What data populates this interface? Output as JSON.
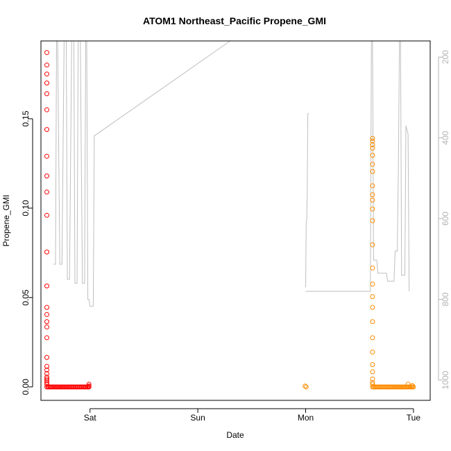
{
  "chart_data": {
    "type": "scatter",
    "title": "ATOM1 Northeast_Pacific Propene_GMI",
    "xlabel": "Date",
    "ylabel": "Propene_GMI",
    "x_axis_unit": "days",
    "xlim": [
      -0.455,
      3.155
    ],
    "ylim": [
      -0.0075,
      0.1935
    ],
    "x_ticks": [
      {
        "label": "Sat",
        "value": 0
      },
      {
        "label": "Sun",
        "value": 1
      },
      {
        "label": "Mon",
        "value": 2
      },
      {
        "label": "Tue",
        "value": 3
      }
    ],
    "y_ticks": [
      {
        "label": "0.00",
        "value": 0.0
      },
      {
        "label": "0.05",
        "value": 0.05
      },
      {
        "label": "0.10",
        "value": 0.1
      },
      {
        "label": "0.15",
        "value": 0.15
      }
    ],
    "right_axis": {
      "ylim_top_to_bottom": [
        160,
        1050
      ],
      "inverted": true,
      "color": "#b3b3b3",
      "ticks": [
        {
          "label": "200",
          "value": 200
        },
        {
          "label": "400",
          "value": 400
        },
        {
          "label": "600",
          "value": 600
        },
        {
          "label": "800",
          "value": 800
        },
        {
          "label": "1000",
          "value": 1000
        }
      ]
    },
    "series": [
      {
        "color": "#ff0000",
        "x_start": -0.4,
        "x_end": -0.01,
        "cluster_x": -0.4,
        "cluster_y": [
          0.187,
          0.18,
          0.175,
          0.17,
          0.164,
          0.155,
          0.144,
          0.129,
          0.118,
          0.109,
          0.096,
          0.0755,
          0.0565,
          0.0445,
          0.0405,
          0.0365,
          0.0335,
          0.0275,
          0.0165,
          0.0115,
          0.0095,
          0.0075,
          0.0055,
          0.0045,
          0.0035,
          0.0025,
          0.0015
        ],
        "baseline_y": 0.0,
        "end_markers": [
          {
            "x": -0.01,
            "y": 0.0015
          },
          {
            "x": -0.01,
            "y": 0.0005
          }
        ]
      },
      {
        "color": "#ff8c00",
        "x_start": 1.995,
        "x_end": 3.0,
        "early_points": [
          {
            "x": 1.995,
            "y": 0.0005
          },
          {
            "x": 2.005,
            "y": 0.0
          }
        ],
        "cluster_x": 2.62,
        "cluster_y": [
          0.139,
          0.1375,
          0.1355,
          0.1335,
          0.1295,
          0.1245,
          0.1205,
          0.1125,
          0.1075,
          0.1045,
          0.0995,
          0.093,
          0.0795,
          0.0665,
          0.0575,
          0.0505,
          0.0445,
          0.0365,
          0.0275,
          0.0195,
          0.0125,
          0.0085,
          0.0045,
          0.0025,
          0.0015
        ],
        "baseline_y": 0.0,
        "baseline_x_start": 2.62,
        "baseline_x_end": 3.0,
        "end_markers": [
          {
            "x": 2.95,
            "y": 0.0015
          },
          {
            "x": 2.99,
            "y": 0.0008
          }
        ]
      }
    ],
    "pressure_line": {
      "color": "#bebebe",
      "segments": [
        [
          [
            -0.34,
            713
          ],
          [
            -0.32,
            713
          ],
          [
            -0.31,
            160
          ],
          [
            -0.3,
            160
          ],
          [
            -0.28,
            713
          ],
          [
            -0.26,
            713
          ],
          [
            -0.24,
            160
          ],
          [
            -0.22,
            160
          ],
          [
            -0.21,
            750
          ],
          [
            -0.19,
            750
          ],
          [
            -0.17,
            160
          ],
          [
            -0.15,
            160
          ],
          [
            -0.14,
            760
          ],
          [
            -0.12,
            760
          ],
          [
            -0.11,
            160
          ],
          [
            -0.09,
            160
          ],
          [
            -0.07,
            760
          ],
          [
            -0.05,
            760
          ],
          [
            -0.04,
            160
          ],
          [
            -0.03,
            160
          ],
          [
            -0.02,
            800
          ],
          [
            -0.01,
            800
          ],
          [
            0.0,
            817
          ],
          [
            0.03,
            817
          ],
          [
            0.04,
            395
          ],
          [
            1.3,
            160
          ]
        ],
        [
          [
            2.0,
            770
          ],
          [
            2.005,
            612
          ],
          [
            2.01,
            600
          ],
          [
            2.015,
            540
          ],
          [
            2.02,
            340
          ],
          [
            2.03,
            340
          ]
        ],
        [
          [
            2.0,
            780
          ],
          [
            2.6,
            780
          ],
          [
            2.61,
            160
          ],
          [
            2.62,
            160
          ],
          [
            2.63,
            703
          ],
          [
            2.66,
            703
          ],
          [
            2.67,
            735
          ],
          [
            2.75,
            735
          ],
          [
            2.76,
            755
          ],
          [
            2.82,
            755
          ],
          [
            2.83,
            680
          ],
          [
            2.85,
            680
          ],
          [
            2.86,
            470
          ],
          [
            2.87,
            160
          ],
          [
            2.88,
            160
          ],
          [
            2.89,
            740
          ],
          [
            2.92,
            740
          ],
          [
            2.93,
            370
          ],
          [
            2.95,
            390
          ],
          [
            2.96,
            780
          ]
        ]
      ]
    }
  }
}
